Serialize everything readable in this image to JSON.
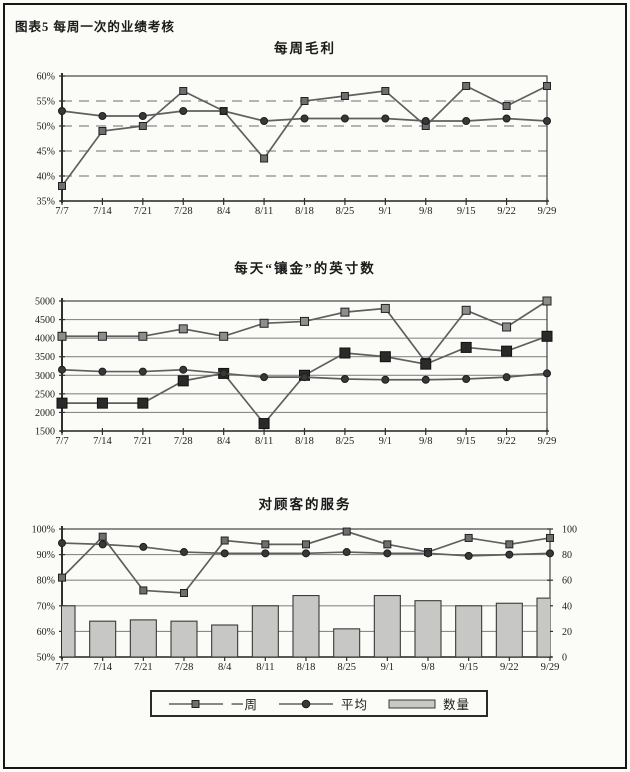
{
  "page": {
    "figure_label": "图表5  每周一次的业绩考核"
  },
  "legend": {
    "items": [
      {
        "label": "一周",
        "marker": "square-line"
      },
      {
        "label": "平均",
        "marker": "circle-line"
      },
      {
        "label": "数量",
        "marker": "bar-swatch"
      }
    ]
  },
  "colors": {
    "line": "#5f5f5f",
    "grid": "#8a8a8a",
    "axis": "#2f2f2f",
    "marker_mid": "#6e6e6e",
    "marker_dark": "#2a2a2a",
    "marker_light": "#8d8d8d",
    "marker_edge": "#222222",
    "circle_fill": "#383838",
    "bar_fill": "#c7c7c5",
    "bar_edge": "#3a3a3a"
  },
  "chart_data": [
    {
      "type": "line",
      "title": "每周毛利",
      "grid": "dashed",
      "categories": [
        "7/7",
        "7/14",
        "7/21",
        "7/28",
        "8/4",
        "8/11",
        "8/18",
        "8/25",
        "9/1",
        "9/8",
        "9/15",
        "9/22",
        "9/29"
      ],
      "y_axis": {
        "min": 35,
        "max": 60,
        "step": 5,
        "format": "percent",
        "ticks": [
          "35%",
          "40%",
          "45%",
          "50%",
          "55%",
          "60%"
        ]
      },
      "series": [
        {
          "name": "一周",
          "marker": "square",
          "values": [
            38,
            49,
            50,
            57,
            53,
            43.5,
            55,
            56,
            57,
            50,
            58,
            54,
            58
          ]
        },
        {
          "name": "平均",
          "marker": "circle",
          "values": [
            53,
            52,
            52,
            53,
            53,
            51,
            51.5,
            51.5,
            51.5,
            51,
            51,
            51.5,
            51
          ]
        }
      ]
    },
    {
      "type": "line",
      "title": "每天“镶金”的英寸数",
      "grid": "solid",
      "categories": [
        "7/7",
        "7/14",
        "7/21",
        "7/28",
        "8/4",
        "8/11",
        "8/18",
        "8/25",
        "9/1",
        "9/8",
        "9/15",
        "9/22",
        "9/29"
      ],
      "y_axis": {
        "min": 1500,
        "max": 5000,
        "step": 500,
        "format": "plain",
        "ticks": [
          "1500",
          "2000",
          "2500",
          "3000",
          "3500",
          "4000",
          "4500",
          "5000"
        ]
      },
      "series": [
        {
          "name": "",
          "marker": "square-light",
          "values": [
            4050,
            4050,
            4050,
            4250,
            4050,
            4400,
            4450,
            4700,
            4800,
            3350,
            4750,
            4300,
            5000
          ]
        },
        {
          "name": "一周",
          "marker": "square-big",
          "values": [
            2250,
            2250,
            2250,
            2850,
            3050,
            1700,
            3000,
            3600,
            3500,
            3300,
            3750,
            3650,
            4050
          ]
        },
        {
          "name": "平均",
          "marker": "circle",
          "values": [
            3150,
            3100,
            3100,
            3150,
            3050,
            2950,
            2950,
            2900,
            2880,
            2880,
            2900,
            2950,
            3050
          ]
        }
      ]
    },
    {
      "type": "bar+line",
      "title": "对顾客的服务",
      "grid": "solid",
      "categories": [
        "7/7",
        "7/14",
        "7/21",
        "7/28",
        "8/4",
        "8/11",
        "8/18",
        "8/25",
        "9/1",
        "9/8",
        "9/15",
        "9/22",
        "9/29"
      ],
      "y_axis": {
        "min": 50,
        "max": 100,
        "step": 10,
        "format": "percent",
        "ticks": [
          "50%",
          "60%",
          "70%",
          "80%",
          "90%",
          "100%"
        ]
      },
      "right_axis": {
        "min": 0,
        "max": 100,
        "step": 20,
        "ticks": [
          "0",
          "20",
          "40",
          "60",
          "80",
          "100"
        ]
      },
      "bars": {
        "name": "数量",
        "axis": "right",
        "values": [
          40,
          28,
          29,
          28,
          25,
          40,
          48,
          22,
          48,
          44,
          40,
          42,
          46
        ]
      },
      "series": [
        {
          "name": "一周",
          "marker": "square",
          "values": [
            81,
            97,
            76,
            75,
            95.5,
            94,
            94,
            99,
            94,
            91,
            96.5,
            94,
            96.5
          ]
        },
        {
          "name": "平均",
          "marker": "circle",
          "values": [
            94.5,
            94,
            93,
            91,
            90.5,
            90.5,
            90.5,
            91,
            90.5,
            90.5,
            89.5,
            90,
            90.5
          ]
        }
      ]
    }
  ]
}
